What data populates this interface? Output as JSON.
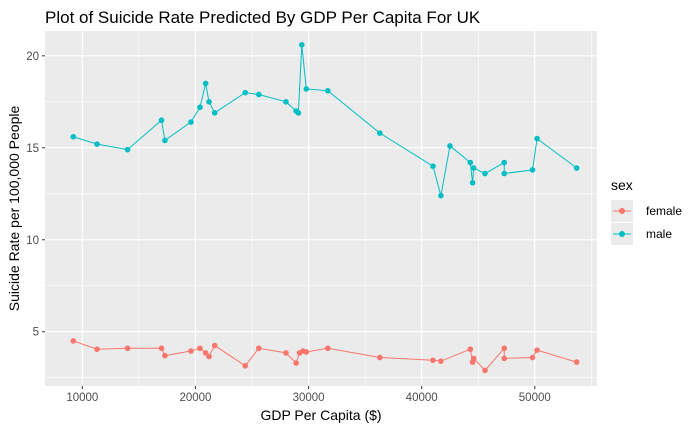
{
  "chart_data": {
    "type": "line",
    "title": "Plot of Suicide Rate Predicted By GDP Per Capita For UK",
    "xlabel": "GDP Per Capita ($)",
    "ylabel": "Suicide Rate per 100,000 People",
    "xlim": [
      6700,
      55500
    ],
    "ylim": [
      2.05,
      21.35
    ],
    "x_ticks": [
      10000,
      20000,
      30000,
      40000,
      50000
    ],
    "x_tick_labels": [
      "10000",
      "20000",
      "30000",
      "40000",
      "50000"
    ],
    "y_ticks": [
      5,
      10,
      15,
      20
    ],
    "y_tick_labels": [
      "5",
      "10",
      "15",
      "20"
    ],
    "grid": true,
    "legend": {
      "title": "sex",
      "position": "right",
      "entries": [
        "female",
        "male"
      ]
    },
    "series": [
      {
        "name": "female",
        "color": "#F8766D",
        "points": [
          [
            9200,
            4.5
          ],
          [
            11300,
            4.05
          ],
          [
            14000,
            4.1
          ],
          [
            17000,
            4.1
          ],
          [
            17300,
            3.7
          ],
          [
            19600,
            3.95
          ],
          [
            20400,
            4.1
          ],
          [
            20900,
            3.85
          ],
          [
            21200,
            3.65
          ],
          [
            21700,
            4.25
          ],
          [
            24400,
            3.15
          ],
          [
            25600,
            4.1
          ],
          [
            28000,
            3.85
          ],
          [
            28900,
            3.3
          ],
          [
            29200,
            3.85
          ],
          [
            29500,
            3.95
          ],
          [
            29800,
            3.9
          ],
          [
            31700,
            4.1
          ],
          [
            36300,
            3.6
          ],
          [
            41000,
            3.45
          ],
          [
            41700,
            3.4
          ],
          [
            44300,
            4.05
          ],
          [
            44500,
            3.35
          ],
          [
            44600,
            3.55
          ],
          [
            45600,
            2.9
          ],
          [
            47300,
            4.1
          ],
          [
            47300,
            3.55
          ],
          [
            49800,
            3.6
          ],
          [
            50200,
            4.0
          ],
          [
            53700,
            3.35
          ]
        ]
      },
      {
        "name": "male",
        "color": "#00BFC4",
        "points": [
          [
            9200,
            15.6
          ],
          [
            11300,
            15.2
          ],
          [
            14000,
            14.9
          ],
          [
            17000,
            16.5
          ],
          [
            17300,
            15.4
          ],
          [
            19600,
            16.4
          ],
          [
            20400,
            17.2
          ],
          [
            20900,
            18.5
          ],
          [
            21200,
            17.5
          ],
          [
            21700,
            16.9
          ],
          [
            24400,
            18.0
          ],
          [
            25600,
            17.9
          ],
          [
            28000,
            17.5
          ],
          [
            28900,
            17.0
          ],
          [
            29100,
            16.9
          ],
          [
            29400,
            20.6
          ],
          [
            29800,
            18.2
          ],
          [
            31700,
            18.1
          ],
          [
            36300,
            15.8
          ],
          [
            41000,
            14.0
          ],
          [
            41700,
            12.4
          ],
          [
            42500,
            15.1
          ],
          [
            44300,
            14.2
          ],
          [
            44500,
            13.1
          ],
          [
            44600,
            13.9
          ],
          [
            45600,
            13.6
          ],
          [
            47300,
            14.2
          ],
          [
            47300,
            13.6
          ],
          [
            49800,
            13.8
          ],
          [
            50200,
            15.5
          ],
          [
            53700,
            13.9
          ]
        ]
      }
    ]
  }
}
